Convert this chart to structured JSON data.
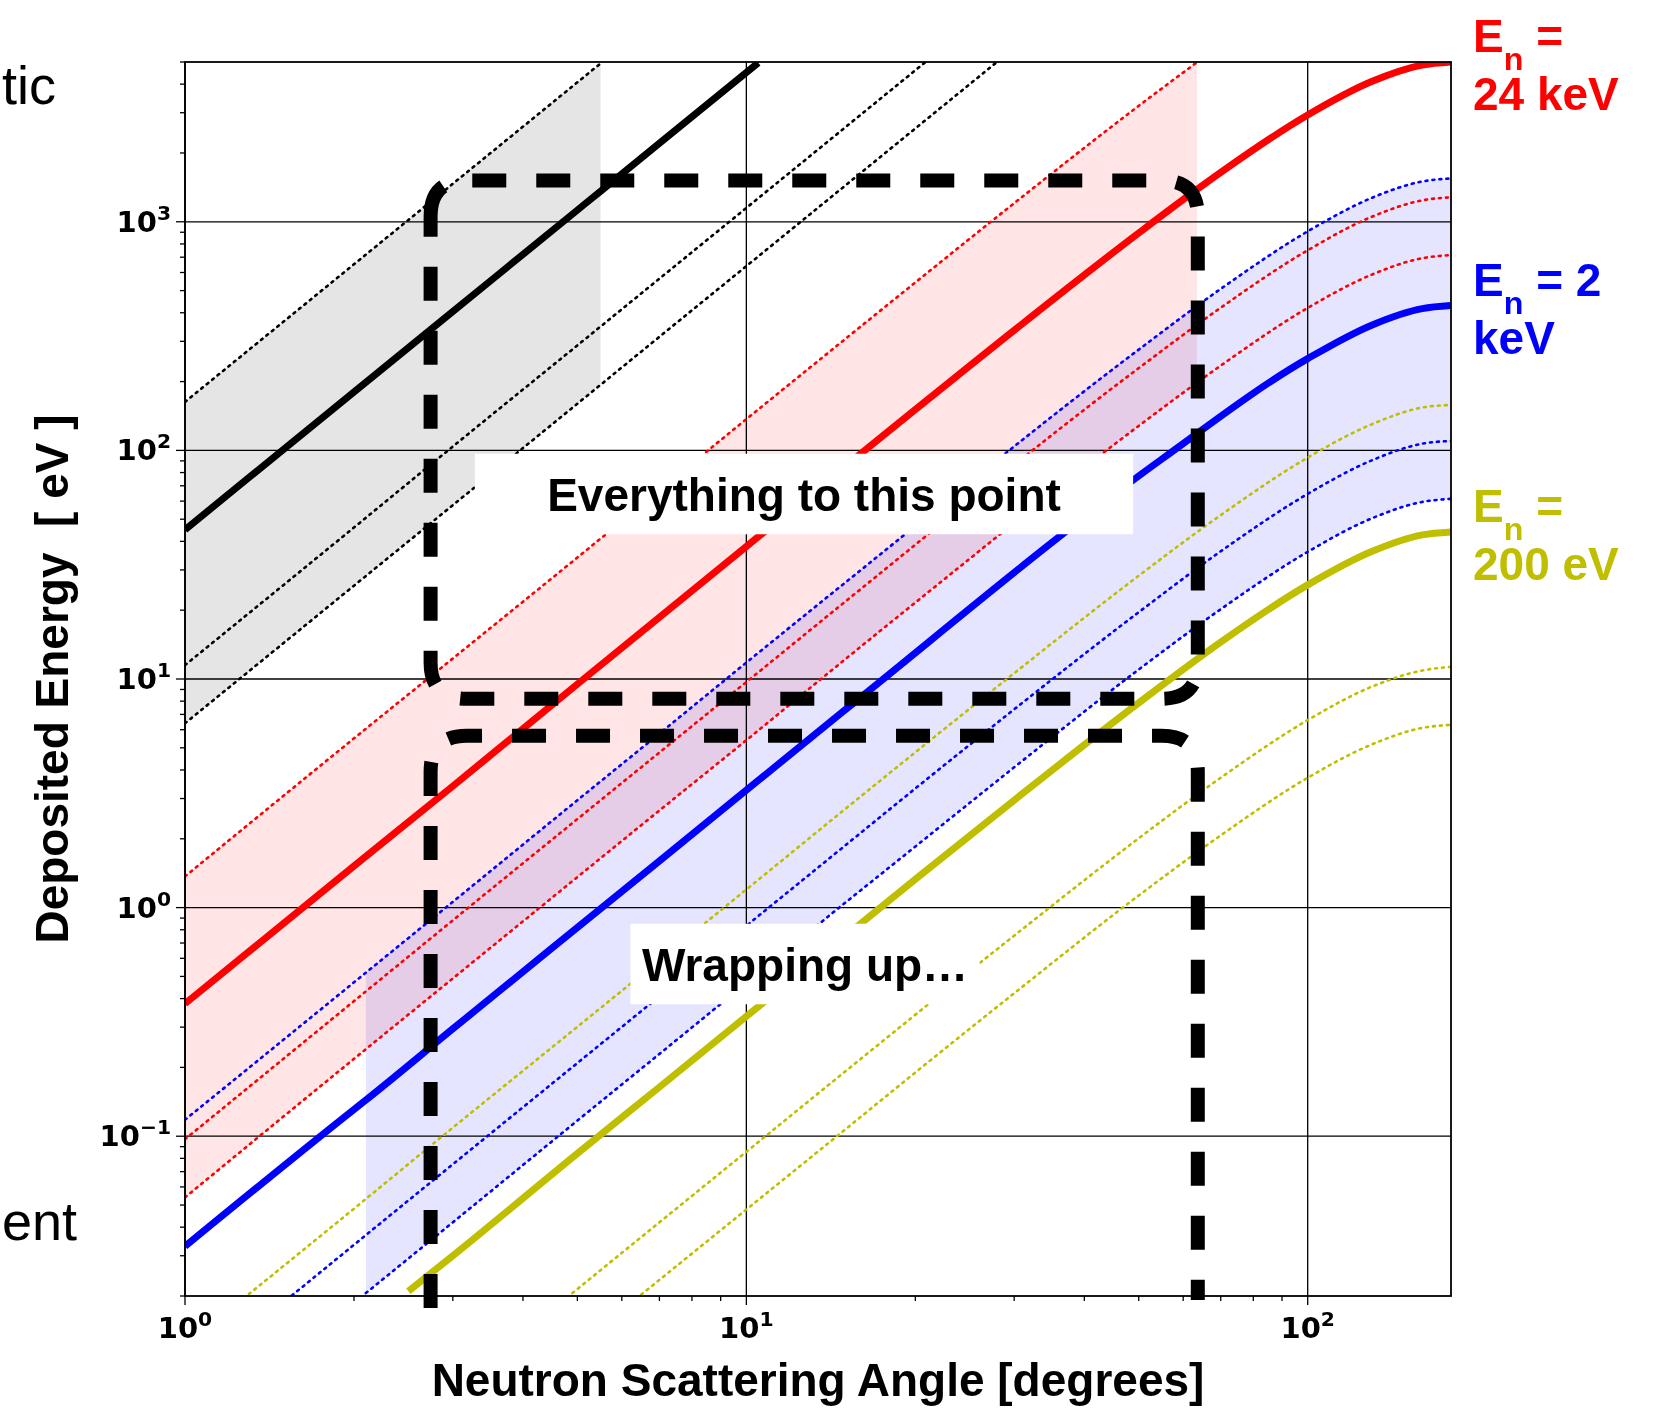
{
  "chart_data": {
    "type": "line",
    "xlabel": "Neutron Scattering Angle [degrees]",
    "ylabel": "Deposited Energy  [ eV ]",
    "xlim": [
      1,
      180
    ],
    "ylim": [
      0.02,
      5000
    ],
    "log": "xy",
    "grid": true,
    "xticks": [
      {
        "value": 1,
        "label": "10$^{0}$"
      },
      {
        "value": 2,
        "label": null
      },
      {
        "value": 3,
        "label": null
      },
      {
        "value": 4,
        "label": null
      },
      {
        "value": 5,
        "label": null
      },
      {
        "value": 6,
        "label": null
      },
      {
        "value": 7,
        "label": null
      },
      {
        "value": 8,
        "label": null
      },
      {
        "value": 9,
        "label": null
      },
      {
        "value": 10,
        "label": "10$^{1}$"
      },
      {
        "value": 20,
        "label": null
      },
      {
        "value": 30,
        "label": null
      },
      {
        "value": 40,
        "label": null
      },
      {
        "value": 50,
        "label": null
      },
      {
        "value": 60,
        "label": null
      },
      {
        "value": 70,
        "label": null
      },
      {
        "value": 80,
        "label": null
      },
      {
        "value": 90,
        "label": null
      },
      {
        "value": 100,
        "label": "10$^{2}$"
      }
    ],
    "yticks": [
      {
        "value": 0.02,
        "label": null
      },
      {
        "value": 0.03,
        "label": null
      },
      {
        "value": 0.04,
        "label": null
      },
      {
        "value": 0.05,
        "label": null
      },
      {
        "value": 0.06,
        "label": null
      },
      {
        "value": 0.07,
        "label": null
      },
      {
        "value": 0.08,
        "label": null
      },
      {
        "value": 0.09,
        "label": null
      },
      {
        "value": 0.1,
        "label": "10$^{−1}$"
      },
      {
        "value": 0.2,
        "label": null
      },
      {
        "value": 0.3,
        "label": null
      },
      {
        "value": 0.4,
        "label": null
      },
      {
        "value": 0.5,
        "label": null
      },
      {
        "value": 0.6,
        "label": null
      },
      {
        "value": 0.7,
        "label": null
      },
      {
        "value": 0.8,
        "label": null
      },
      {
        "value": 0.9,
        "label": null
      },
      {
        "value": 1,
        "label": "10$^{0}$"
      },
      {
        "value": 2,
        "label": null
      },
      {
        "value": 3,
        "label": null
      },
      {
        "value": 4,
        "label": null
      },
      {
        "value": 5,
        "label": null
      },
      {
        "value": 6,
        "label": null
      },
      {
        "value": 7,
        "label": null
      },
      {
        "value": 8,
        "label": null
      },
      {
        "value": 9,
        "label": null
      },
      {
        "value": 10,
        "label": "10$^{1}$"
      },
      {
        "value": 20,
        "label": null
      },
      {
        "value": 30,
        "label": null
      },
      {
        "value": 40,
        "label": null
      },
      {
        "value": 50,
        "label": null
      },
      {
        "value": 60,
        "label": null
      },
      {
        "value": 70,
        "label": null
      },
      {
        "value": 80,
        "label": null
      },
      {
        "value": 90,
        "label": null
      },
      {
        "value": 100,
        "label": "10$^{2}$"
      },
      {
        "value": 200,
        "label": null
      },
      {
        "value": 300,
        "label": null
      },
      {
        "value": 400,
        "label": null
      },
      {
        "value": 500,
        "label": null
      },
      {
        "value": 600,
        "label": null
      },
      {
        "value": 700,
        "label": null
      },
      {
        "value": 800,
        "label": null
      },
      {
        "value": 900,
        "label": null
      },
      {
        "value": 1000,
        "label": "10$^{3}$"
      },
      {
        "value": 2000,
        "label": null
      },
      {
        "value": 3000,
        "label": null
      },
      {
        "value": 4000,
        "label": null
      },
      {
        "value": 5000,
        "label": null
      }
    ],
    "annotations": [
      "tic",
      "ent",
      "Everything to this point",
      "Wrapping up…"
    ],
    "series": [
      {
        "color": "#000000",
        "line_style": "solid",
        "x": [
          1,
          2,
          3,
          5,
          5.5,
          7,
          10,
          10.5
        ],
        "values": [
          45,
          180,
          405,
          1125,
          1361,
          2205,
          4500,
          4961
        ],
        "upper": [
          163,
          652,
          1467,
          4075,
          4931,
          null,
          null,
          null
        ],
        "lower": [
          6.4,
          25.6,
          57.6,
          160,
          194,
          null,
          null,
          null
        ]
      },
      {
        "color": "#000000",
        "line_style": "dotted",
        "x": [
          1,
          2,
          3,
          5,
          5.5
        ],
        "values": [
          163,
          652,
          1467,
          4075,
          4931
        ]
      },
      {
        "color": "#000000",
        "line_style": "dotted",
        "x": [
          1,
          2,
          3,
          5,
          7,
          10,
          15,
          20.8
        ],
        "values": [
          11.5,
          46,
          104,
          288,
          564,
          1150,
          2588,
          4975
        ]
      },
      {
        "color": "#000000",
        "line_style": "dotted",
        "x": [
          1,
          2,
          3,
          5,
          7,
          10,
          15,
          20,
          27.9
        ],
        "values": [
          6.4,
          25.6,
          57.6,
          160,
          314,
          640,
          1440,
          2560,
          4982
        ]
      },
      {
        "name": "E$_{n}$ = 24 keV",
        "color": "#ff0000",
        "line_style": "solid",
        "x": [
          1,
          2,
          3,
          5,
          10,
          20,
          50,
          63.5,
          70,
          100,
          130,
          160,
          180
        ],
        "values": [
          0.38,
          1.52,
          3.4,
          9.5,
          38,
          151,
          893,
          1385,
          1645,
          2934,
          4107,
          4849,
          5000
        ],
        "upper": [
          1.37,
          5.5,
          12.3,
          34,
          137,
          543,
          3215,
          4986,
          null,
          null,
          null,
          null,
          null
        ],
        "lower": [
          0.054,
          0.218,
          0.49,
          1.36,
          5.4,
          21.6,
          128,
          198,
          null,
          null,
          null,
          null,
          null
        ]
      },
      {
        "color": "#ff0000",
        "line_style": "dotted",
        "x": [
          1,
          2,
          3,
          5,
          10,
          15,
          20,
          30,
          50,
          63.5
        ],
        "values": [
          1.37,
          5.5,
          12.3,
          34,
          137,
          307,
          543,
          1206,
          3215,
          4986
        ]
      },
      {
        "color": "#ff0000",
        "line_style": "dotted",
        "x": [
          1,
          2,
          3,
          5,
          7,
          10,
          15,
          50,
          70,
          100,
          130,
          160,
          180
        ],
        "values": [
          0.097,
          0.39,
          0.88,
          2.44,
          4.77,
          9.7,
          21.8,
          229,
          421,
          751,
          1051,
          1241,
          1280
        ]
      },
      {
        "color": "#ff0000",
        "line_style": "dotted",
        "x": [
          1,
          2,
          3,
          5,
          7,
          10,
          15,
          20,
          50,
          70,
          100,
          130,
          160,
          180
        ],
        "values": [
          0.054,
          0.218,
          0.49,
          1.36,
          2.66,
          5.4,
          12.2,
          21.6,
          128,
          235,
          420,
          587,
          693,
          715
        ]
      },
      {
        "name": "E$_{n}$ = 2 keV",
        "color": "#0000ff",
        "line_style": "solid",
        "x": [
          1,
          2,
          2.1,
          3,
          5,
          7,
          15,
          55,
          100,
          130,
          160,
          180
        ],
        "values": [
          0.033,
          0.131,
          0.144,
          0.295,
          0.818,
          1.6,
          7.33,
          91.7,
          252,
          353,
          417,
          430
        ],
        "upper": [
          null,
          null,
          0.52,
          1.06,
          2.95,
          5.77,
          26.4,
          330,
          908,
          1272,
          1501,
          1548
        ],
        "lower": [
          null,
          null,
          0.0206,
          0.042,
          0.117,
          0.229,
          1.05,
          13.1,
          36,
          50.4,
          59.5,
          61.4
        ]
      },
      {
        "color": "#0000ff",
        "line_style": "dotted",
        "x": [
          1,
          2,
          3,
          5,
          7,
          10,
          15,
          50,
          70,
          100,
          130,
          160,
          180
        ],
        "values": [
          0.118,
          0.471,
          1.06,
          2.95,
          5.77,
          11.8,
          26.4,
          276,
          509,
          908,
          1272,
          1501,
          1548
        ]
      },
      {
        "color": "#0000ff",
        "line_style": "dotted",
        "x": [
          1.55,
          2,
          3,
          5,
          15,
          20,
          30,
          50,
          70,
          100,
          130,
          160,
          180
        ],
        "values": [
          0.0201,
          0.0335,
          0.0754,
          0.209,
          1.87,
          3.32,
          7.37,
          19.6,
          36.2,
          64.5,
          90.4,
          107,
          110
        ]
      },
      {
        "color": "#0000ff",
        "line_style": "dotted",
        "x": [
          2.1,
          3,
          5,
          7,
          15,
          20,
          30,
          50,
          70,
          100,
          130,
          160,
          180
        ],
        "values": [
          0.0206,
          0.042,
          0.117,
          0.229,
          1.05,
          1.85,
          4.11,
          11,
          20.2,
          36,
          50.4,
          59.5,
          61.4
        ]
      },
      {
        "name": "E$_{n}$ = 200 eV",
        "color": "#bfbf00",
        "line_style": "solid",
        "x": [
          2.5,
          3,
          5,
          7,
          20,
          30,
          50,
          70,
          100,
          130,
          160,
          180
        ],
        "values": [
          0.021,
          0.03,
          0.084,
          0.164,
          1.33,
          2.95,
          7.86,
          14.5,
          25.8,
          36.1,
          42.7,
          44
        ]
      },
      {
        "color": "#bfbf00",
        "line_style": "dotted",
        "x": [
          1.3,
          2,
          3,
          5,
          10,
          15,
          20,
          30,
          50,
          70,
          100,
          130,
          160,
          180
        ],
        "values": [
          0.0204,
          0.0482,
          0.109,
          0.301,
          1.2,
          2.7,
          4.78,
          10.6,
          28.3,
          52.1,
          93,
          130,
          154,
          158
        ]
      },
      {
        "color": "#bfbf00",
        "line_style": "dotted",
        "x": [
          4.9,
          7,
          10,
          15,
          30,
          50,
          70,
          100,
          130,
          160,
          180
        ],
        "values": [
          0.0206,
          0.042,
          0.0855,
          0.192,
          0.754,
          2.01,
          3.7,
          6.61,
          9.25,
          10.9,
          11.3
        ]
      },
      {
        "color": "#bfbf00",
        "line_style": "dotted",
        "x": [
          6.5,
          10,
          15,
          20,
          30,
          50,
          70,
          100,
          130,
          160,
          180
        ],
        "values": [
          0.0203,
          0.0478,
          0.107,
          0.19,
          0.422,
          1.13,
          2.07,
          3.7,
          5.17,
          6.11,
          6.3
        ]
      }
    ]
  }
}
